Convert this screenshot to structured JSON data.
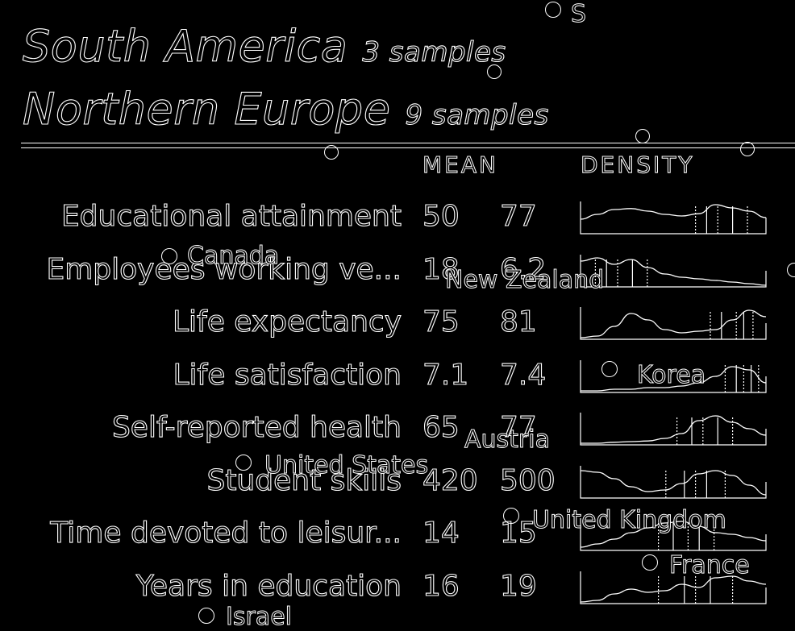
{
  "chart_data": {
    "type": "table",
    "groups": [
      {
        "name": "South America",
        "count_label": "3 samples"
      },
      {
        "name": "Northern Europe",
        "count_label": "9 samples"
      }
    ],
    "columns": {
      "mean": "MEAN",
      "density": "DENSITY"
    },
    "rows": [
      {
        "label": "Educational attainment",
        "mean_a": "50",
        "mean_b": "77",
        "density": [
          0.45,
          0.6,
          0.75,
          0.78,
          0.7,
          0.6,
          0.55,
          0.62,
          0.9,
          0.8,
          0.7,
          0.5
        ],
        "marks": [
          0.62,
          0.68,
          0.74,
          0.82,
          0.9
        ]
      },
      {
        "label": "Employees working ve...",
        "mean_a": "18",
        "mean_b": "6.2",
        "density": [
          0.8,
          0.9,
          0.7,
          0.85,
          0.6,
          0.4,
          0.3,
          0.25,
          0.2,
          0.15,
          0.1,
          0.05
        ],
        "marks": [
          0.08,
          0.14,
          0.2,
          0.28,
          0.36
        ]
      },
      {
        "label": "Life expectancy",
        "mean_a": "75",
        "mean_b": "81",
        "density": [
          0.05,
          0.1,
          0.4,
          0.8,
          0.6,
          0.3,
          0.2,
          0.25,
          0.3,
          0.6,
          0.9,
          0.7
        ],
        "marks": [
          0.7,
          0.76,
          0.84,
          0.88,
          0.93
        ]
      },
      {
        "label": "Life satisfaction",
        "mean_a": "7.1",
        "mean_b": "7.4",
        "density": [
          0.05,
          0.05,
          0.1,
          0.1,
          0.15,
          0.15,
          0.2,
          0.3,
          0.5,
          0.8,
          0.7,
          0.3
        ],
        "marks": [
          0.78,
          0.84,
          0.88,
          0.92,
          0.96
        ]
      },
      {
        "label": "Self-reported health",
        "mean_a": "65",
        "mean_b": "77",
        "density": [
          0.05,
          0.05,
          0.08,
          0.1,
          0.12,
          0.2,
          0.35,
          0.75,
          0.9,
          0.7,
          0.5,
          0.3
        ],
        "marks": [
          0.52,
          0.6,
          0.66,
          0.74,
          0.82
        ]
      },
      {
        "label": "Student skills",
        "mean_a": "420",
        "mean_b": "500",
        "density": [
          0.85,
          0.8,
          0.6,
          0.35,
          0.2,
          0.25,
          0.45,
          0.75,
          0.85,
          0.7,
          0.4,
          0.1
        ],
        "marks": [
          0.46,
          0.56,
          0.62,
          0.68,
          0.78
        ]
      },
      {
        "label": "Time devoted to leisur...",
        "mean_a": "14",
        "mean_b": "15",
        "density": [
          0.1,
          0.2,
          0.35,
          0.55,
          0.7,
          0.85,
          0.9,
          0.75,
          0.55,
          0.5,
          0.4,
          0.3
        ],
        "marks": [
          0.42,
          0.5,
          0.58,
          0.64,
          0.72
        ]
      },
      {
        "label": "Years in education",
        "mean_a": "16",
        "mean_b": "19",
        "density": [
          0.05,
          0.1,
          0.3,
          0.45,
          0.35,
          0.4,
          0.6,
          0.5,
          0.8,
          0.85,
          0.7,
          0.6
        ],
        "marks": [
          0.42,
          0.56,
          0.62,
          0.7,
          0.82
        ]
      }
    ],
    "country_labels": [
      {
        "text": "S"
      },
      {
        "text": "Canada"
      },
      {
        "text": "New Zealand"
      },
      {
        "text": "Korea"
      },
      {
        "text": "Austria"
      },
      {
        "text": "United States"
      },
      {
        "text": "United Kingdom"
      },
      {
        "text": "France"
      },
      {
        "text": "Israel"
      }
    ]
  }
}
